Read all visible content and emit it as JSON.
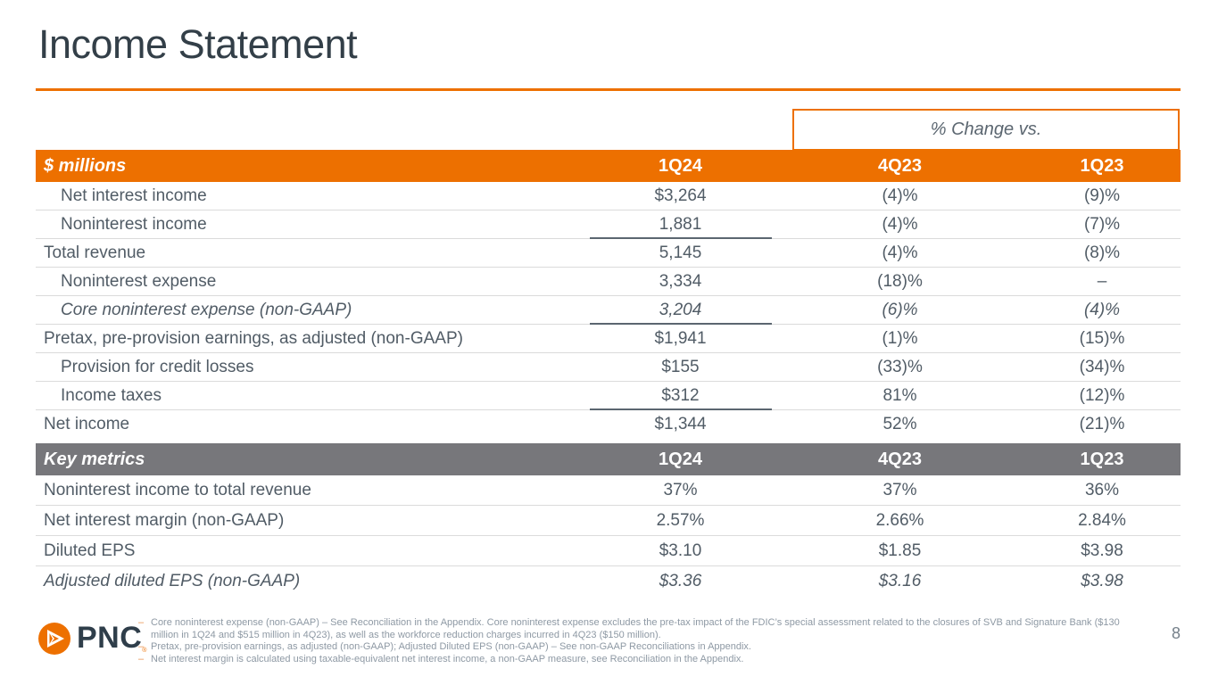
{
  "slide": {
    "title": "Income Statement",
    "change_box_label": "% Change vs.",
    "logo_text": "PNC",
    "page_number": "8"
  },
  "colors": {
    "accent_orange": "#ED7000",
    "gray_header": "#77777B",
    "title_text": "#333F48",
    "body_text": "#515C66"
  },
  "income_table": {
    "header": {
      "label": "$ millions",
      "cols": [
        "1Q24",
        "4Q23",
        "1Q23"
      ]
    },
    "rows": [
      {
        "label": "Net interest income",
        "indent": true,
        "italic": false,
        "q1": "$3,264",
        "q4": "(4)%",
        "q3": "(9)%",
        "underline": false
      },
      {
        "label": "Noninterest income",
        "indent": true,
        "italic": false,
        "q1": "1,881",
        "q4": "(4)%",
        "q3": "(7)%",
        "underline": true
      },
      {
        "label": "Total revenue",
        "indent": false,
        "italic": false,
        "q1": "5,145",
        "q4": "(4)%",
        "q3": "(8)%",
        "underline": false
      },
      {
        "label": "Noninterest expense",
        "indent": true,
        "italic": false,
        "q1": "3,334",
        "q4": "(18)%",
        "q3": "–",
        "underline": false
      },
      {
        "label": "Core noninterest expense (non-GAAP)",
        "indent": true,
        "italic": true,
        "q1": "3,204",
        "q4": "(6)%",
        "q3": "(4)%",
        "underline": true
      },
      {
        "label": "Pretax, pre-provision earnings, as adjusted (non-GAAP)",
        "indent": false,
        "italic": false,
        "q1": "$1,941",
        "q4": "(1)%",
        "q3": "(15)%",
        "underline": false
      },
      {
        "label": "Provision for credit losses",
        "indent": true,
        "italic": false,
        "q1": "$155",
        "q4": "(33)%",
        "q3": "(34)%",
        "underline": false
      },
      {
        "label": "Income taxes",
        "indent": true,
        "italic": false,
        "q1": "$312",
        "q4": "81%",
        "q3": "(12)%",
        "underline": true
      },
      {
        "label": "Net income",
        "indent": false,
        "italic": false,
        "q1": "$1,344",
        "q4": "52%",
        "q3": "(21)%",
        "underline": false
      }
    ]
  },
  "metrics_table": {
    "header": {
      "label": "Key metrics",
      "cols": [
        "1Q24",
        "4Q23",
        "1Q23"
      ]
    },
    "rows": [
      {
        "label": "Noninterest income to total revenue",
        "indent": false,
        "italic": false,
        "q1": "37%",
        "q4": "37%",
        "q3": "36%",
        "underline": false
      },
      {
        "label": "Net interest margin (non-GAAP)",
        "indent": false,
        "italic": false,
        "q1": "2.57%",
        "q4": "2.66%",
        "q3": "2.84%",
        "underline": false
      },
      {
        "label": "Diluted EPS",
        "indent": false,
        "italic": false,
        "q1": "$3.10",
        "q4": "$1.85",
        "q3": "$3.98",
        "underline": false
      },
      {
        "label": "Adjusted diluted EPS (non-GAAP)",
        "indent": false,
        "italic": true,
        "q1": "$3.36",
        "q4": "$3.16",
        "q3": "$3.98",
        "underline": false
      }
    ]
  },
  "footnotes": [
    "Core noninterest expense (non-GAAP) – See Reconciliation in the Appendix. Core noninterest expense excludes the pre-tax impact of the FDIC’s special assessment related to the closures of SVB and Signature Bank ($130 million in 1Q24 and $515 million in 4Q23), as well as the workforce reduction charges incurred in 4Q23 ($150 million).",
    "Pretax, pre-provision earnings, as adjusted (non-GAAP); Adjusted Diluted EPS (non-GAAP) – See non-GAAP Reconciliations in Appendix.",
    "Net interest margin is calculated using taxable-equivalent net interest income, a non-GAAP measure, see Reconciliation in the Appendix."
  ]
}
